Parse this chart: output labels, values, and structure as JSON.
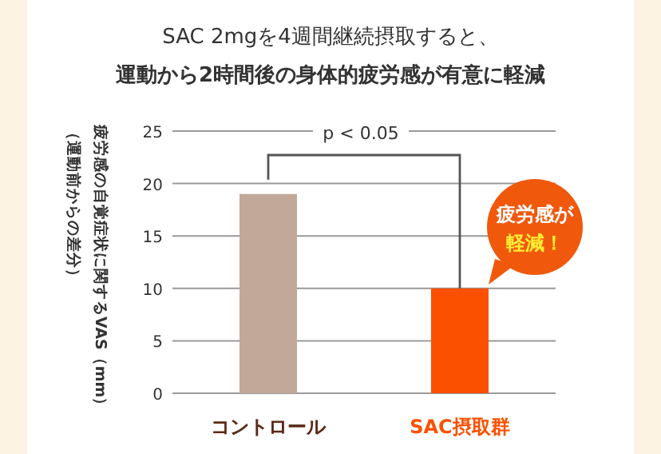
{
  "chart_data": {
    "type": "bar",
    "title": "SAC 2mgを4週間継続摂取すると、",
    "subtitle": "運動から2時間後の身体的疲労感が有意に軽減",
    "ylabel": "疲労感の自覚症状に関するVAS（mm）",
    "categories": [
      "コントロール",
      "SAC摂取群"
    ],
    "values": [
      19,
      10
    ],
    "colors": [
      "#c1a899",
      "#fb5000"
    ],
    "ylim": [
      0,
      25
    ],
    "yticks": [
      0,
      5,
      10,
      15,
      20,
      25
    ],
    "grid": "y",
    "annotations": [
      "p < 0.05",
      "疲労感が",
      "軽減！",
      "（運動前からの差分）"
    ]
  }
}
